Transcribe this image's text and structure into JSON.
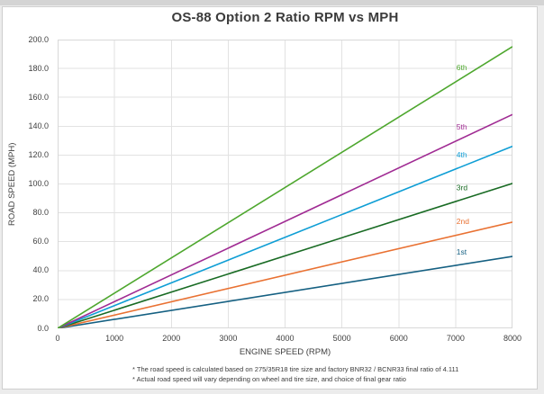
{
  "chart_data": {
    "type": "line",
    "title": "OS-88 Option 2 Ratio RPM vs MPH",
    "xlabel": "ENGINE SPEED (RPM)",
    "ylabel": "ROAD SPEED (MPH)",
    "xlim": [
      0,
      8000
    ],
    "ylim": [
      0,
      200
    ],
    "grid": true,
    "legend_position": "inline-right-labels",
    "x_ticks": [
      "0",
      "1000",
      "2000",
      "3000",
      "4000",
      "5000",
      "6000",
      "7000",
      "8000"
    ],
    "y_ticks": [
      "0.0",
      "20.0",
      "40.0",
      "60.0",
      "80.0",
      "100.0",
      "120.0",
      "140.0",
      "160.0",
      "180.0",
      "200.0"
    ],
    "x": [
      0,
      8000
    ],
    "series": [
      {
        "name": "1st",
        "color": "#156082",
        "values": [
          0,
          49.8
        ]
      },
      {
        "name": "2nd",
        "color": "#E97132",
        "values": [
          0,
          73.6
        ]
      },
      {
        "name": "3rd",
        "color": "#196B24",
        "values": [
          0,
          100.4
        ]
      },
      {
        "name": "4th",
        "color": "#0F9ED5",
        "values": [
          0,
          126.1
        ]
      },
      {
        "name": "5th",
        "color": "#A02B93",
        "values": [
          0,
          148.1
        ]
      },
      {
        "name": "6th",
        "color": "#4EA72E",
        "values": [
          0,
          195.1
        ]
      }
    ],
    "label_anchor_rpm": 7030,
    "grid_color": "#e2e2e2",
    "plot_border_color": "#d8d8d8",
    "axis_line_color": "#bdbdbd",
    "footnotes": [
      "* The road speed is calculated based on 275/35R18 tire size and factory BNR32 / BCNR33 final ratio of 4.111",
      "* Actual road speed will vary depending on wheel and tire size, and choice of final gear ratio"
    ]
  }
}
